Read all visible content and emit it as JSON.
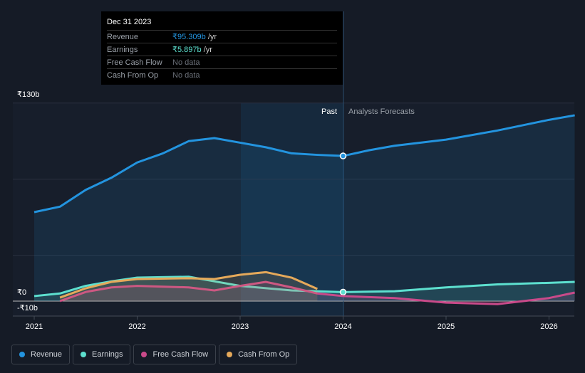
{
  "tooltip": {
    "date": "Dec 31 2023",
    "rows": [
      {
        "label": "Revenue",
        "value": "₹95.309b",
        "unit": " /yr",
        "color": "#2394df"
      },
      {
        "label": "Earnings",
        "value": "₹5.897b",
        "unit": " /yr",
        "color": "#5de0cf"
      },
      {
        "label": "Free Cash Flow",
        "value": "No data",
        "unit": "",
        "color": "#6b7079"
      },
      {
        "label": "Cash From Op",
        "value": "No data",
        "unit": "",
        "color": "#6b7079"
      }
    ]
  },
  "labels": {
    "past": "Past",
    "forecast": "Analysts Forecasts"
  },
  "chart_data": {
    "type": "line",
    "ylim": [
      -10,
      130
    ],
    "y_ticks": [
      "₹130b",
      "₹0",
      "-₹10b"
    ],
    "x_ticks": [
      "2021",
      "2022",
      "2023",
      "2024",
      "2025",
      "2026"
    ],
    "xlim": [
      2021,
      2026.25
    ],
    "past_end": 2024,
    "series": [
      {
        "name": "Revenue",
        "color": "#2394df",
        "x": [
          2021,
          2021.25,
          2021.5,
          2021.75,
          2022,
          2022.25,
          2022.5,
          2022.75,
          2023,
          2023.25,
          2023.5,
          2023.75,
          2024,
          2024.25,
          2024.5,
          2025,
          2025.5,
          2026,
          2026.25
        ],
        "values": [
          58.4,
          62,
          73,
          81,
          91,
          97,
          105,
          107,
          104,
          101,
          97,
          96,
          95.3,
          99,
          102,
          106,
          112,
          119,
          122
        ]
      },
      {
        "name": "Earnings",
        "color": "#5de0cf",
        "x": [
          2021,
          2021.25,
          2021.5,
          2021.75,
          2022,
          2022.5,
          2022.75,
          2023,
          2023.5,
          2024,
          2024.5,
          2025,
          2025.5,
          2026,
          2026.25
        ],
        "values": [
          3.3,
          5,
          10,
          13,
          15.4,
          16,
          13,
          10,
          7,
          5.9,
          6.5,
          9,
          11,
          12,
          12.6
        ]
      },
      {
        "name": "Free Cash Flow",
        "color": "#c94a8a",
        "x": [
          2021.25,
          2021.5,
          2021.75,
          2022,
          2022.5,
          2022.75,
          2023,
          2023.25,
          2023.5,
          2023.75,
          2024,
          2024.5,
          2025,
          2025.5,
          2026,
          2026.25
        ],
        "values": [
          0,
          6,
          9,
          10,
          9,
          7,
          10,
          12.6,
          9,
          5,
          3.3,
          2,
          -1,
          -2,
          2,
          5.6
        ]
      },
      {
        "name": "Cash From Op",
        "color": "#e5a95a",
        "x": [
          2021.25,
          2021.5,
          2021.75,
          2022,
          2022.5,
          2022.75,
          2023,
          2023.25,
          2023.5,
          2023.75
        ],
        "values": [
          2.3,
          8.4,
          12.6,
          14.5,
          15,
          14.5,
          17.3,
          19,
          15.4,
          8
        ]
      }
    ]
  }
}
